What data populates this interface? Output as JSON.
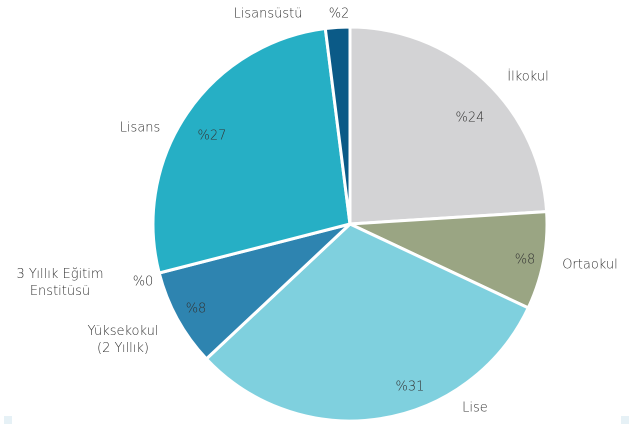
{
  "chart_data": {
    "type": "pie",
    "categories": [
      "İlkokul",
      "Ortaokul",
      "Lise",
      "3 Yıllık Eğitim Enstitüsü",
      "Yüksekokul (2 Yıllık)",
      "Lisans",
      "Lisansüstü"
    ],
    "values": [
      24,
      8,
      31,
      0,
      8,
      27,
      2
    ],
    "value_labels": [
      "%24",
      "%8",
      "%31",
      "%0",
      "%8",
      "%27",
      "%2"
    ],
    "colors": [
      "#d3d3d5",
      "#9aa583",
      "#7fd0de",
      "#1f6f99",
      "#2e84b0",
      "#26afc5",
      "#0b5a87"
    ]
  }
}
